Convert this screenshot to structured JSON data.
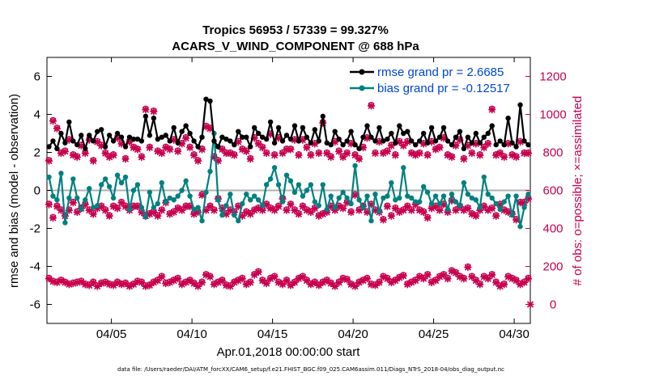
{
  "chart_data": {
    "type": "line",
    "title_line1": "Tropics 56953 / 57339 = 99.327%",
    "title_line2": "ACARS_V_WIND_COMPONENT @ 688 hPa",
    "xlabel": "Apr.01,2018 00:00:00 start",
    "ylabel_left": "rmse and bias (model - observation)",
    "ylabel_right": "# of obs: o=possible; ×=assimilated",
    "xlim": [
      1.0,
      31.0
    ],
    "ylim_left": [
      -7,
      7
    ],
    "ylim_right": [
      -100,
      1300
    ],
    "xticks": [
      5,
      10,
      15,
      20,
      25,
      30
    ],
    "xtick_labels": [
      "04/05",
      "04/10",
      "04/15",
      "04/20",
      "04/25",
      "04/30"
    ],
    "yticks_left": [
      -6,
      -4,
      -2,
      0,
      2,
      4,
      6
    ],
    "yticks_right": [
      0,
      200,
      400,
      600,
      800,
      1000,
      1200
    ],
    "legend": {
      "position": "top-right",
      "rmse_label": "rmse grand pr = 2.6685",
      "bias_label": "bias grand pr = -0.12517"
    },
    "colors": {
      "rmse": "#000000",
      "bias": "#008080",
      "obs": "#c8004e",
      "zero": "#b0b0b0"
    },
    "x": [
      1.125,
      1.375,
      1.625,
      1.875,
      2.125,
      2.375,
      2.625,
      2.875,
      3.125,
      3.375,
      3.625,
      3.875,
      4.125,
      4.375,
      4.625,
      4.875,
      5.125,
      5.375,
      5.625,
      5.875,
      6.125,
      6.375,
      6.625,
      6.875,
      7.125,
      7.375,
      7.625,
      7.875,
      8.125,
      8.375,
      8.625,
      8.875,
      9.125,
      9.375,
      9.625,
      9.875,
      10.125,
      10.375,
      10.625,
      10.875,
      11.125,
      11.375,
      11.625,
      11.875,
      12.125,
      12.375,
      12.625,
      12.875,
      13.125,
      13.375,
      13.625,
      13.875,
      14.125,
      14.375,
      14.625,
      14.875,
      15.125,
      15.375,
      15.625,
      15.875,
      16.125,
      16.375,
      16.625,
      16.875,
      17.125,
      17.375,
      17.625,
      17.875,
      18.125,
      18.375,
      18.625,
      18.875,
      19.125,
      19.375,
      19.625,
      19.875,
      20.125,
      20.375,
      20.625,
      20.875,
      21.125,
      21.375,
      21.625,
      21.875,
      22.125,
      22.375,
      22.625,
      22.875,
      23.125,
      23.375,
      23.625,
      23.875,
      24.125,
      24.375,
      24.625,
      24.875,
      25.125,
      25.375,
      25.625,
      25.875,
      26.125,
      26.375,
      26.625,
      26.875,
      27.125,
      27.375,
      27.625,
      27.875,
      28.125,
      28.375,
      28.625,
      28.875,
      29.125,
      29.375,
      29.625,
      29.875,
      30.125,
      30.375,
      30.625,
      30.875
    ],
    "rmse": [
      2.3,
      2.6,
      2.2,
      3.0,
      2.5,
      3.6,
      2.6,
      2.4,
      2.9,
      2.2,
      2.9,
      2.6,
      3.1,
      3.2,
      2.3,
      2.9,
      2.6,
      3.0,
      2.8,
      2.3,
      2.8,
      2.7,
      2.7,
      2.6,
      3.9,
      2.9,
      3.8,
      2.7,
      2.8,
      2.9,
      2.6,
      3.3,
      2.5,
      3.1,
      3.4,
      3.0,
      2.6,
      2.3,
      2.8,
      4.8,
      4.7,
      2.6,
      2.3,
      2.8,
      2.7,
      2.6,
      2.4,
      3.1,
      2.8,
      2.8,
      2.3,
      3.3,
      3.0,
      2.8,
      2.7,
      3.6,
      2.5,
      3.3,
      2.6,
      2.9,
      2.7,
      3.4,
      2.6,
      3.3,
      2.8,
      2.5,
      3.2,
      2.6,
      3.9,
      2.5,
      2.4,
      3.1,
      2.7,
      2.4,
      2.6,
      3.1,
      2.4,
      2.2,
      2.8,
      3.4,
      2.8,
      2.6,
      3.3,
      2.6,
      2.7,
      3.0,
      2.5,
      3.4,
      3.0,
      3.1,
      2.6,
      2.4,
      2.6,
      3.0,
      2.5,
      3.3,
      2.6,
      2.8,
      3.3,
      2.6,
      2.4,
      2.8,
      3.1,
      2.2,
      2.8,
      2.5,
      3.0,
      2.5,
      2.8,
      3.0,
      3.4,
      2.4,
      2.6,
      2.4,
      3.8,
      2.5,
      2.3,
      4.5,
      2.6,
      2.4
    ],
    "bias": [
      0.7,
      -0.3,
      -0.5,
      0.9,
      -1.7,
      -0.4,
      0.6,
      -0.4,
      -1.0,
      -0.5,
      0.1,
      -0.9,
      -0.8,
      0.3,
      0.6,
      0.2,
      -0.4,
      0.8,
      0.4,
      0.7,
      -1.0,
      0.0,
      0.3,
      -0.9,
      -1.4,
      -0.1,
      -0.9,
      -0.7,
      0.4,
      -0.6,
      -0.4,
      -0.5,
      -0.3,
      0.0,
      0.5,
      -0.3,
      -1.0,
      -0.9,
      -1.6,
      -0.1,
      1.0,
      3.0,
      -0.5,
      -1.3,
      -0.8,
      -0.2,
      -1.3,
      -1.6,
      -0.7,
      -0.2,
      -0.5,
      -0.3,
      -0.5,
      -0.8,
      0.3,
      0.6,
      1.2,
      0.3,
      -0.6,
      0.8,
      0.5,
      -0.1,
      0.3,
      -0.3,
      0.0,
      0.3,
      -0.6,
      -0.8,
      0.3,
      -1.0,
      -0.3,
      -0.9,
      -0.4,
      -0.1,
      -0.4,
      -0.7,
      1.3,
      -0.5,
      -0.9,
      -0.3,
      -1.6,
      -0.2,
      -1.1,
      -0.4,
      -0.3,
      0.4,
      -0.5,
      -0.4,
      1.2,
      -0.3,
      -0.4,
      -0.6,
      -0.6,
      0.2,
      -0.1,
      -0.7,
      -0.3,
      -0.7,
      -0.3,
      -1.0,
      -0.2,
      -0.6,
      -0.8,
      0.4,
      -0.2,
      -0.4,
      -0.5,
      -0.9,
      0.7,
      -0.2,
      -0.4,
      -0.7,
      -1.0,
      -0.6,
      -0.3,
      -1.3,
      -0.3,
      -1.9,
      -0.9,
      -0.2
    ],
    "obs_possible_upper": [
      760,
      970,
      930,
      800,
      810,
      870,
      790,
      780,
      840,
      800,
      870,
      760,
      860,
      840,
      800,
      780,
      790,
      880,
      850,
      770,
      860,
      830,
      820,
      780,
      1030,
      830,
      1020,
      810,
      800,
      830,
      820,
      870,
      810,
      850,
      880,
      830,
      790,
      760,
      820,
      940,
      930,
      780,
      760,
      820,
      800,
      800,
      790,
      860,
      820,
      810,
      770,
      880,
      850,
      830,
      800,
      900,
      790,
      880,
      800,
      820,
      820,
      870,
      790,
      870,
      830,
      790,
      850,
      800,
      960,
      800,
      780,
      860,
      810,
      780,
      800,
      850,
      790,
      770,
      830,
      880,
      1050,
      800,
      860,
      800,
      810,
      840,
      790,
      860,
      840,
      860,
      800,
      790,
      800,
      850,
      790,
      860,
      820,
      830,
      880,
      790,
      780,
      840,
      870,
      770,
      840,
      800,
      850,
      790,
      830,
      850,
      1030,
      790,
      800,
      780,
      850,
      790,
      780,
      860,
      800,
      800
    ],
    "obs_assim_upper": [
      755,
      965,
      925,
      795,
      805,
      865,
      785,
      775,
      835,
      795,
      865,
      755,
      855,
      835,
      795,
      775,
      785,
      875,
      845,
      765,
      855,
      825,
      815,
      775,
      1025,
      825,
      1015,
      805,
      795,
      825,
      815,
      865,
      805,
      845,
      875,
      825,
      785,
      755,
      815,
      935,
      925,
      775,
      755,
      815,
      795,
      795,
      785,
      855,
      815,
      805,
      765,
      875,
      845,
      825,
      795,
      895,
      785,
      875,
      795,
      815,
      815,
      865,
      785,
      865,
      825,
      785,
      845,
      795,
      955,
      795,
      775,
      855,
      805,
      775,
      795,
      845,
      785,
      765,
      825,
      875,
      1045,
      795,
      855,
      795,
      805,
      835,
      785,
      855,
      835,
      855,
      795,
      785,
      795,
      845,
      785,
      855,
      815,
      825,
      875,
      785,
      775,
      835,
      865,
      765,
      835,
      795,
      845,
      785,
      825,
      845,
      1025,
      785,
      795,
      775,
      845,
      785,
      775,
      855,
      795,
      795
    ],
    "obs_possible_middle": [
      530,
      460,
      520,
      500,
      470,
      500,
      540,
      490,
      510,
      530,
      500,
      480,
      510,
      520,
      500,
      470,
      520,
      510,
      540,
      520,
      500,
      520,
      520,
      490,
      470,
      480,
      490,
      470,
      500,
      540,
      480,
      490,
      510,
      500,
      520,
      520,
      480,
      490,
      580,
      500,
      520,
      500,
      560,
      510,
      480,
      500,
      490,
      520,
      470,
      490,
      480,
      500,
      510,
      500,
      530,
      510,
      500,
      520,
      560,
      500,
      530,
      500,
      480,
      520,
      500,
      490,
      510,
      470,
      480,
      490,
      520,
      500,
      520,
      510,
      540,
      490,
      580,
      500,
      520,
      490,
      530,
      500,
      490,
      450,
      520,
      470,
      510,
      490,
      500,
      520,
      500,
      530,
      500,
      490,
      460,
      510,
      520,
      500,
      530,
      490,
      550,
      500,
      520,
      500,
      510,
      480,
      470,
      500,
      520,
      500,
      510,
      470,
      530,
      500,
      490,
      480,
      450,
      540,
      540,
      560
    ],
    "obs_assim_middle": [
      525,
      455,
      515,
      495,
      465,
      495,
      535,
      485,
      505,
      525,
      495,
      475,
      505,
      515,
      495,
      465,
      515,
      505,
      535,
      515,
      495,
      515,
      515,
      485,
      465,
      475,
      485,
      465,
      495,
      535,
      475,
      485,
      505,
      495,
      515,
      515,
      475,
      485,
      575,
      495,
      515,
      495,
      555,
      505,
      475,
      495,
      485,
      515,
      465,
      485,
      475,
      495,
      505,
      495,
      525,
      505,
      495,
      515,
      555,
      495,
      525,
      495,
      475,
      515,
      495,
      485,
      505,
      465,
      475,
      485,
      515,
      495,
      515,
      505,
      535,
      485,
      575,
      495,
      515,
      485,
      525,
      495,
      485,
      445,
      515,
      465,
      505,
      485,
      495,
      515,
      495,
      525,
      495,
      485,
      455,
      505,
      515,
      495,
      525,
      485,
      545,
      495,
      515,
      495,
      505,
      475,
      465,
      495,
      515,
      495,
      505,
      465,
      525,
      495,
      485,
      475,
      445,
      535,
      535,
      555
    ],
    "obs_possible_lower": [
      140,
      125,
      120,
      130,
      120,
      110,
      115,
      120,
      125,
      110,
      105,
      120,
      100,
      115,
      120,
      110,
      105,
      120,
      110,
      115,
      100,
      110,
      125,
      120,
      100,
      105,
      120,
      130,
      150,
      115,
      120,
      130,
      140,
      110,
      120,
      130,
      115,
      100,
      120,
      160,
      150,
      110,
      120,
      130,
      105,
      100,
      120,
      130,
      140,
      110,
      120,
      160,
      175,
      130,
      115,
      140,
      150,
      120,
      110,
      130,
      105,
      120,
      140,
      150,
      130,
      110,
      120,
      105,
      120,
      130,
      115,
      100,
      120,
      140,
      135,
      110,
      100,
      120,
      130,
      140,
      110,
      105,
      120,
      150,
      140,
      120,
      130,
      145,
      155,
      110,
      120,
      130,
      150,
      140,
      160,
      120,
      130,
      150,
      160,
      140,
      180,
      170,
      150,
      140,
      200,
      150,
      130,
      110,
      150,
      140,
      160,
      120,
      100,
      110,
      150,
      140,
      130,
      110,
      120,
      140
    ],
    "obs_assim_lower": [
      135,
      120,
      115,
      125,
      115,
      105,
      110,
      115,
      120,
      105,
      100,
      115,
      95,
      110,
      115,
      105,
      100,
      115,
      105,
      110,
      95,
      105,
      120,
      115,
      95,
      100,
      115,
      125,
      145,
      110,
      115,
      125,
      135,
      105,
      115,
      125,
      110,
      95,
      115,
      155,
      145,
      105,
      115,
      125,
      100,
      95,
      115,
      125,
      135,
      105,
      115,
      155,
      170,
      125,
      110,
      135,
      145,
      115,
      105,
      125,
      100,
      115,
      135,
      145,
      125,
      105,
      115,
      100,
      115,
      125,
      110,
      95,
      115,
      135,
      130,
      105,
      95,
      115,
      125,
      135,
      105,
      100,
      115,
      145,
      135,
      115,
      125,
      140,
      150,
      105,
      115,
      125,
      145,
      135,
      155,
      115,
      125,
      145,
      155,
      135,
      175,
      165,
      145,
      135,
      195,
      145,
      125,
      105,
      145,
      135,
      155,
      115,
      95,
      105,
      145,
      135,
      125,
      105,
      115,
      135
    ],
    "obs_final_zero": {
      "x": 31.0,
      "value": 0
    }
  },
  "footer": {
    "data_file": "data file: /Users/raeder/DAI/ATM_forcXX/CAM6_setup/f.e21.FHIST_BGC.f09_025.CAM6assim.011/Diags_NTrS_2018-04/obs_diag_output.nc"
  }
}
